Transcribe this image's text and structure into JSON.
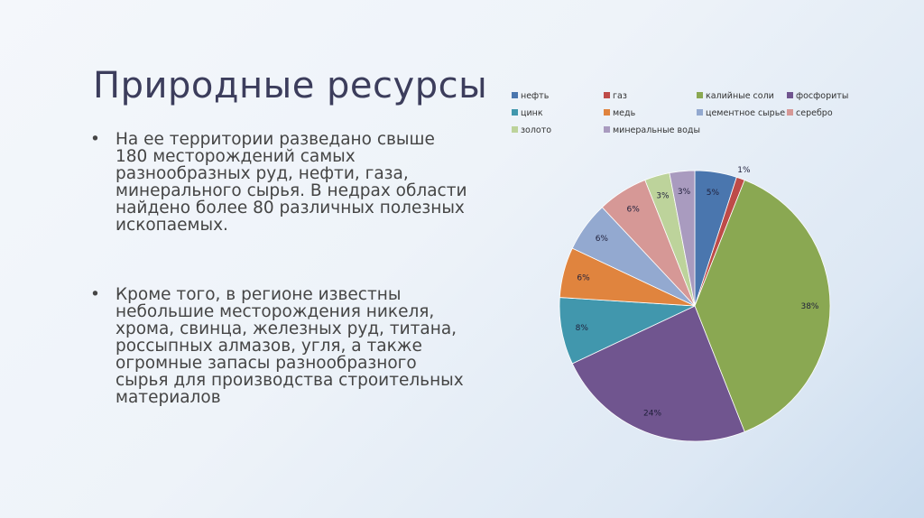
{
  "title": "Природные ресурсы",
  "bullets": [
    {
      "marker": "•",
      "text": "На ее территории разведано свыше 180 месторождений самых разнообразных руд, нефти, газа, минерального сырья. В недрах области найдено более 80 различных полезных ископаемых."
    },
    {
      "marker": "•",
      "text": "Кроме того, в регионе известны небольшие месторождения никеля, хрома, свинца, железных руд, титана, россыпных алмазов, угля, а также огромные запасы разнообразного сырья для производства строительных материалов"
    }
  ],
  "chart_data": {
    "type": "pie",
    "title": "",
    "legend_position": "top",
    "categories": [
      "нефть",
      "газ",
      "калийные соли",
      "фосфориты",
      "цинк",
      "медь",
      "цементное сырье",
      "серебро",
      "золото",
      "минеральные воды"
    ],
    "values": [
      5,
      1,
      38,
      24,
      8,
      6,
      6,
      6,
      3,
      3
    ],
    "labels": [
      "5%",
      "1%",
      "38%",
      "24%",
      "8%",
      "6%",
      "6%",
      "6%",
      "3%",
      "3%"
    ],
    "colors": [
      "#4a76ae",
      "#be4b48",
      "#8aa852",
      "#70558f",
      "#4197ad",
      "#e0843e",
      "#93a9d0",
      "#d69896",
      "#bdd39b",
      "#a99bbf"
    ]
  }
}
